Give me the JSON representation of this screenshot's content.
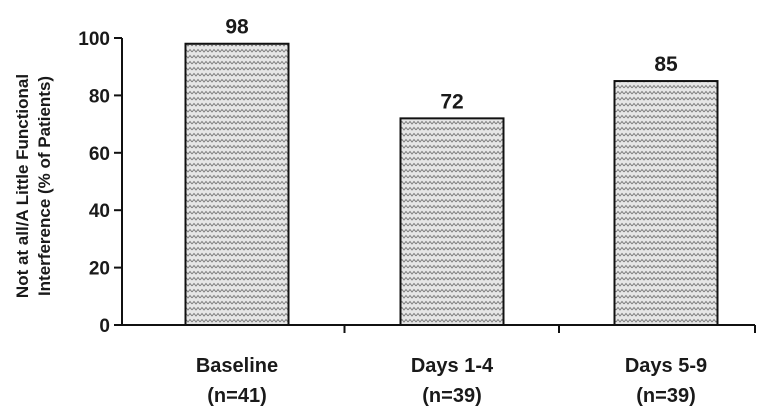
{
  "chart_data": {
    "type": "bar",
    "categories": [
      "Baseline",
      "Days 1-4",
      "Days 5-9"
    ],
    "category_sublabels": [
      "(n=41)",
      "(n=39)",
      "(n=39)"
    ],
    "values": [
      98,
      72,
      85
    ],
    "data_labels": [
      "98",
      "72",
      "85"
    ],
    "title": "",
    "xlabel": "",
    "ylabel_lines": [
      "Not at all/A Little Functional",
      "Interference (% of Patients)"
    ],
    "ylim": [
      0,
      100
    ],
    "yticks": [
      0,
      20,
      40,
      60,
      80,
      100
    ],
    "grid": false,
    "bar_fill": "#d9d9d9",
    "bar_stroke": "#111111"
  }
}
